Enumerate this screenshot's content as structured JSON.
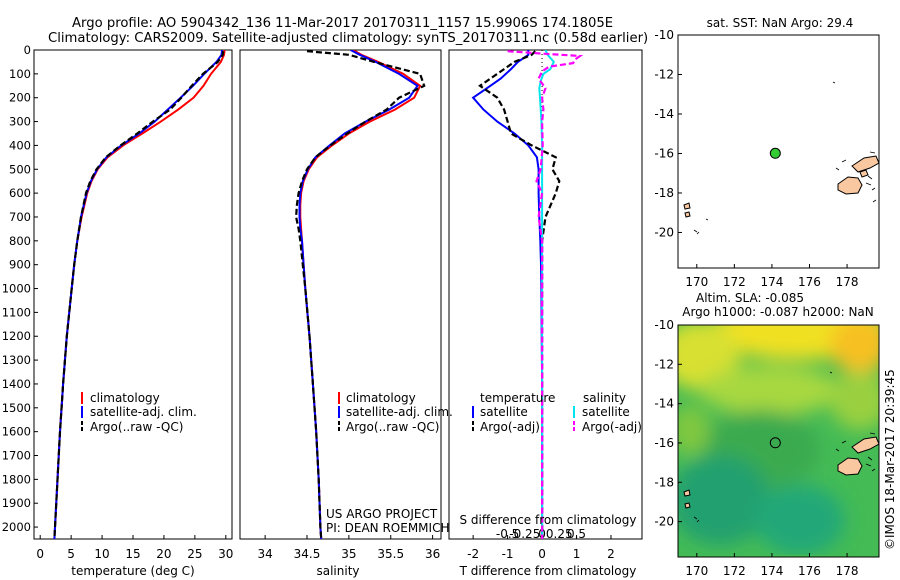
{
  "header": {
    "line1": "Argo profile: AO 5904342_136 11-Mar-2017 20170311_1157 15.9906S 174.1805E",
    "line2": "Climatology: CARS2009. Satellite-adjusted climatology: synTS_20170311.nc (0.58d earlier)"
  },
  "colors": {
    "climatology": "#ff0000",
    "satellite": "#0000ff",
    "argo": "#000000",
    "salinity_satellite": "#00e5ee",
    "salinity_argo": "#ff00ff",
    "dot": "#33cc33"
  },
  "chart_data": [
    {
      "type": "line",
      "id": "temperature",
      "xlabel": "temperature (deg C)",
      "xlim": [
        -1,
        31
      ],
      "ylim": [
        2050,
        0
      ],
      "xticks": [
        "0",
        "5",
        "10",
        "15",
        "20",
        "25",
        "30"
      ],
      "xtick_values": [
        0,
        5,
        10,
        15,
        20,
        25,
        30
      ],
      "yticks": [
        "0",
        "100",
        "200",
        "300",
        "400",
        "500",
        "600",
        "700",
        "800",
        "900",
        "1000",
        "1100",
        "1200",
        "1300",
        "1400",
        "1500",
        "1600",
        "1700",
        "1800",
        "1900",
        "2000"
      ],
      "ytick_values": [
        0,
        100,
        200,
        300,
        400,
        500,
        600,
        700,
        800,
        900,
        1000,
        1100,
        1200,
        1300,
        1400,
        1500,
        1600,
        1700,
        1800,
        1900,
        2000
      ],
      "legend": [
        "climatology",
        "satellite-adj. clim.",
        "Argo(..raw -QC)"
      ],
      "series": [
        {
          "name": "climatology",
          "color": "#ff0000",
          "depth": [
            0,
            20,
            50,
            100,
            150,
            200,
            250,
            300,
            350,
            400,
            450,
            500,
            550,
            600,
            700,
            800,
            900,
            1000,
            1200,
            1400,
            1600,
            1800,
            2000,
            2050
          ],
          "values": [
            29.8,
            29.7,
            29.2,
            27.6,
            26.4,
            24.8,
            22.3,
            19.5,
            16.5,
            13.4,
            10.9,
            9.3,
            8.3,
            7.6,
            6.7,
            6.0,
            5.5,
            5.1,
            4.3,
            3.7,
            3.2,
            2.8,
            2.4,
            2.3
          ]
        },
        {
          "name": "satellite-adj. clim.",
          "color": "#0000ff",
          "depth": [
            0,
            20,
            50,
            100,
            150,
            200,
            250,
            300,
            350,
            400,
            450,
            500,
            550,
            600,
            700,
            800,
            900,
            1000,
            1200,
            1400,
            1600,
            1800,
            2000,
            2050
          ],
          "values": [
            29.4,
            29.3,
            28.5,
            26.5,
            24.7,
            22.7,
            20.6,
            18.5,
            16.0,
            13.1,
            10.7,
            9.2,
            8.2,
            7.5,
            6.6,
            6.0,
            5.5,
            5.1,
            4.3,
            3.7,
            3.2,
            2.8,
            2.4,
            2.3
          ]
        },
        {
          "name": "Argo(..raw -QC)",
          "color": "#000000",
          "depth": [
            5,
            20,
            50,
            100,
            150,
            200,
            250,
            300,
            350,
            400,
            450,
            500,
            550,
            600,
            700,
            800,
            900,
            1000,
            1200,
            1400,
            1600,
            1800,
            2000,
            2050
          ],
          "values": [
            29.6,
            29.5,
            28.7,
            26.3,
            24.5,
            22.8,
            21.0,
            18.2,
            15.7,
            13.0,
            10.6,
            9.1,
            8.1,
            7.4,
            6.6,
            6.0,
            5.5,
            5.1,
            4.3,
            3.7,
            3.2,
            2.8,
            2.4,
            2.3
          ]
        }
      ]
    },
    {
      "type": "line",
      "id": "salinity",
      "xlabel": "salinity",
      "xlim": [
        33.7,
        36.1
      ],
      "ylim": [
        2050,
        0
      ],
      "xticks": [
        "34",
        "34.5",
        "35",
        "35.5",
        "36"
      ],
      "xtick_values": [
        34,
        34.5,
        35,
        35.5,
        36
      ],
      "legend": [
        "climatology",
        "satellite-adj. clim.",
        "Argo(..raw -QC)"
      ],
      "annotation": [
        "US ARGO PROJECT",
        "PI: DEAN ROEMMICH"
      ],
      "series": [
        {
          "name": "climatology",
          "color": "#ff0000",
          "depth": [
            0,
            20,
            50,
            100,
            150,
            200,
            250,
            300,
            350,
            400,
            450,
            500,
            550,
            600,
            650,
            700,
            750,
            800,
            900,
            1000,
            1200,
            1400,
            1600,
            1800,
            2000,
            2050
          ],
          "values": [
            35.05,
            35.15,
            35.35,
            35.65,
            35.85,
            35.78,
            35.55,
            35.25,
            35.0,
            34.8,
            34.62,
            34.52,
            34.46,
            34.43,
            34.42,
            34.42,
            34.43,
            34.44,
            34.46,
            34.48,
            34.53,
            34.57,
            34.61,
            34.64,
            34.66,
            34.67
          ]
        },
        {
          "name": "satellite-adj. clim.",
          "color": "#0000ff",
          "depth": [
            0,
            20,
            50,
            100,
            150,
            200,
            250,
            300,
            350,
            400,
            450,
            500,
            550,
            600,
            650,
            700,
            750,
            800,
            900,
            1000,
            1200,
            1400,
            1600,
            1800,
            2000,
            2050
          ],
          "values": [
            35.02,
            35.13,
            35.32,
            35.6,
            35.82,
            35.72,
            35.48,
            35.2,
            34.95,
            34.77,
            34.6,
            34.51,
            34.45,
            34.42,
            34.41,
            34.41,
            34.42,
            34.44,
            34.46,
            34.48,
            34.53,
            34.57,
            34.61,
            34.64,
            34.66,
            34.67
          ]
        },
        {
          "name": "Argo(..raw -QC)",
          "color": "#000000",
          "depth": [
            5,
            20,
            50,
            100,
            150,
            200,
            250,
            300,
            350,
            400,
            450,
            500,
            550,
            600,
            650,
            700,
            750,
            800,
            900,
            1000,
            1200,
            1400,
            1600,
            1800,
            2000,
            2050
          ],
          "values": [
            34.5,
            35.0,
            35.3,
            35.85,
            35.9,
            35.6,
            35.45,
            35.2,
            34.98,
            34.78,
            34.6,
            34.5,
            34.44,
            34.4,
            34.38,
            34.37,
            34.4,
            34.42,
            34.45,
            34.48,
            34.53,
            34.57,
            34.61,
            34.64,
            34.66,
            34.67
          ]
        }
      ]
    },
    {
      "type": "line",
      "id": "difference",
      "xlabel": "T difference from climatology",
      "xlabel_top": "S difference from climatology",
      "xlim": [
        -2.7,
        2.9
      ],
      "ylim": [
        2050,
        0
      ],
      "xticks": [
        "-2",
        "-1",
        "0",
        "1",
        "2"
      ],
      "xtick_values": [
        -2,
        -1,
        0,
        1,
        2
      ],
      "sxticks": [
        "-0.5",
        "-0.25",
        "0",
        "0.25",
        "0.5"
      ],
      "sxtick_values": [
        -0.5,
        -0.25,
        0,
        0.25,
        0.5
      ],
      "legend_headers": [
        "temperature",
        "salinity"
      ],
      "legend": [
        "satellite",
        "Argo(-adj)",
        "satellite",
        "Argo(-adj)"
      ],
      "series": [
        {
          "name": "satellite",
          "quantity": "temperature",
          "color": "#0000ff",
          "depth": [
            0,
            20,
            50,
            80,
            120,
            150,
            200,
            250,
            300,
            350,
            400,
            450,
            500,
            550,
            600,
            700,
            800,
            900,
            1000,
            1200,
            1400,
            1600,
            1800,
            2000,
            2050
          ],
          "values": [
            -0.4,
            -0.4,
            -0.7,
            -0.9,
            -1.2,
            -1.5,
            -2.0,
            -1.7,
            -1.3,
            -0.8,
            -0.4,
            -0.15,
            -0.1,
            -0.1,
            -0.1,
            -0.08,
            -0.05,
            -0.03,
            -0.02,
            -0.01,
            0,
            0,
            0,
            0,
            0
          ]
        },
        {
          "name": "Argo(-adj)",
          "quantity": "temperature",
          "color": "#000000",
          "depth": [
            5,
            20,
            50,
            80,
            120,
            150,
            200,
            250,
            300,
            350,
            400,
            450,
            500,
            550,
            600,
            700,
            800,
            900,
            1000,
            1200,
            1400,
            1600,
            1800,
            2000,
            2050
          ],
          "values": [
            -0.2,
            -0.3,
            -0.8,
            -1.1,
            -1.5,
            -1.8,
            -1.3,
            -1.1,
            -1.0,
            -0.9,
            -0.3,
            0.4,
            0.3,
            0.5,
            0.4,
            0.1,
            0.0,
            0.0,
            0.0,
            0.0,
            0.0,
            0.0,
            0.0,
            0.0,
            0.0
          ]
        },
        {
          "name": "satellite",
          "quantity": "salinity",
          "color": "#00e5ee",
          "depth": [
            0,
            20,
            50,
            80,
            100,
            130,
            160,
            200,
            250,
            300,
            400,
            500,
            600,
            800,
            1000,
            1200,
            1400,
            1600,
            1800,
            2000,
            2050
          ],
          "values": [
            0.05,
            0.08,
            0.17,
            0.12,
            0.02,
            -0.02,
            -0.04,
            -0.03,
            -0.02,
            -0.01,
            0,
            0,
            0,
            0,
            0,
            0,
            0,
            0,
            0,
            0,
            0
          ]
        },
        {
          "name": "Argo(-adj)",
          "quantity": "salinity",
          "color": "#ff00ff",
          "depth": [
            5,
            15,
            25,
            40,
            55,
            70,
            90,
            120,
            160,
            200,
            250,
            300,
            400,
            500,
            550,
            600,
            700,
            800,
            1000,
            1200,
            1400,
            1600,
            1800,
            2000,
            2050
          ],
          "values": [
            -0.5,
            0.0,
            0.55,
            0.48,
            0.45,
            0.1,
            0.0,
            -0.05,
            0.05,
            0.0,
            0.02,
            0.0,
            0.01,
            -0.02,
            -0.08,
            0.0,
            -0.05,
            0.0,
            0.0,
            0.0,
            0.0,
            0.0,
            0.0,
            0.0,
            0.0
          ]
        }
      ]
    },
    {
      "type": "scatter",
      "id": "sst_map",
      "title": "sat. SST: NaN  Argo: 29.4",
      "xlim": [
        169,
        179.7
      ],
      "ylim": [
        -21.8,
        -10
      ],
      "xticks": [
        "170",
        "172",
        "174",
        "176",
        "178"
      ],
      "xtick_values": [
        170,
        172,
        174,
        176,
        178
      ],
      "yticks": [
        "-10",
        "-12",
        "-14",
        "-16",
        "-18",
        "-20"
      ],
      "ytick_values": [
        -10,
        -12,
        -14,
        -16,
        -18,
        -20
      ],
      "points": [
        {
          "lon": 174.18,
          "lat": -15.99
        }
      ]
    },
    {
      "type": "heatmap",
      "id": "sla_map",
      "title_line1": "Altim. SLA: -0.085",
      "title_line2": "Argo h1000: -0.087 h2000: NaN",
      "xlim": [
        169,
        179.7
      ],
      "ylim": [
        -21.8,
        -10
      ],
      "xticks": [
        "170",
        "172",
        "174",
        "176",
        "178"
      ],
      "xtick_values": [
        170,
        172,
        174,
        176,
        178
      ],
      "yticks": [
        "-10",
        "-12",
        "-14",
        "-16",
        "-18",
        "-20"
      ],
      "ytick_values": [
        -10,
        -12,
        -14,
        -16,
        -18,
        -20
      ],
      "points": [
        {
          "lon": 174.18,
          "lat": -15.99
        }
      ]
    }
  ],
  "credit": "©IMOS 18-Mar-2017 20:39:45"
}
